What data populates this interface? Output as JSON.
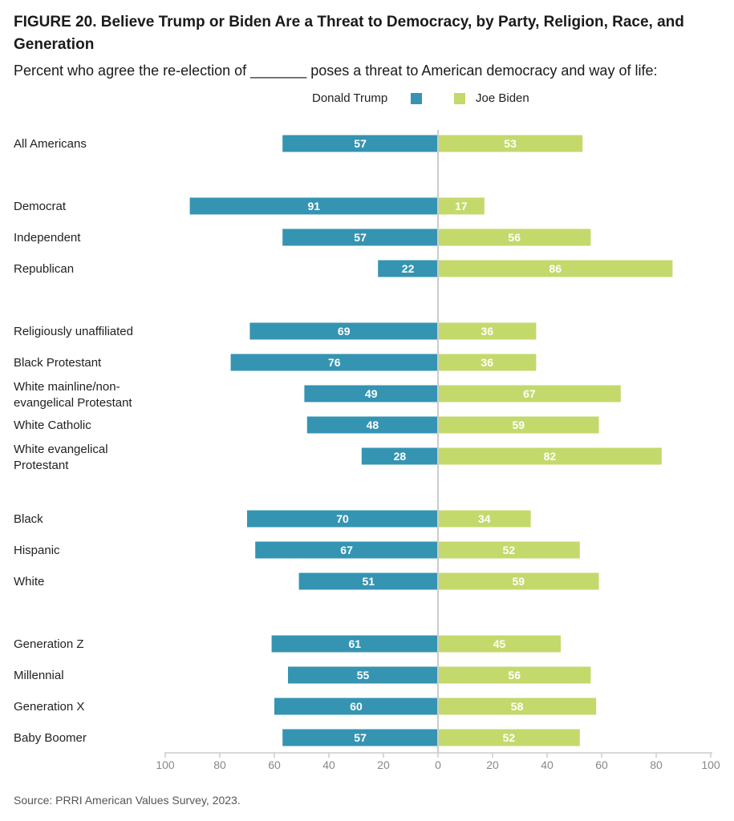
{
  "title": "FIGURE 20.  Believe Trump or Biden Are a Threat to Democracy, by Party, Religion, Race, and Generation",
  "subtitle": "Percent who agree the re-election of _______ poses a threat to American democracy and way of life:",
  "source": "Source: PRRI American Values Survey, 2023.",
  "colors": {
    "trump": "#3594B2",
    "biden": "#C3D96B",
    "axis": "#cccccc",
    "tick_text": "#888888"
  },
  "chart_data": {
    "type": "bar",
    "orientation": "horizontal-diverging",
    "categories": [
      "All Americans",
      "Democrat",
      "Independent",
      "Republican",
      "Religiously unaffiliated",
      "Black Protestant",
      "White mainline/non-\nevangelical Protestant",
      "White Catholic",
      "White evangelical\nProtestant",
      "Black",
      "Hispanic",
      "White",
      "Generation Z",
      "Millennial",
      "Generation X",
      "Baby Boomer"
    ],
    "groups": [
      1,
      3,
      5,
      3,
      4
    ],
    "series": [
      {
        "name": "Donald Trump",
        "direction": "left",
        "values": [
          57,
          91,
          57,
          22,
          69,
          76,
          49,
          48,
          28,
          70,
          67,
          51,
          61,
          55,
          60,
          57
        ]
      },
      {
        "name": "Joe Biden",
        "direction": "right",
        "values": [
          53,
          17,
          56,
          86,
          36,
          36,
          67,
          59,
          82,
          34,
          52,
          59,
          45,
          56,
          58,
          52
        ]
      }
    ],
    "xlim": [
      -100,
      100
    ],
    "xticks": [
      "100",
      "80",
      "60",
      "40",
      "20",
      "0",
      "20",
      "40",
      "60",
      "80",
      "100"
    ],
    "legend": "top-center"
  }
}
